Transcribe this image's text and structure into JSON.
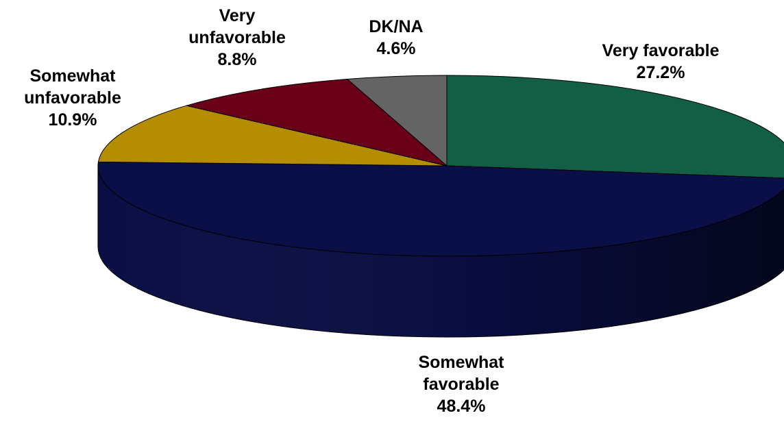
{
  "chart_data": {
    "type": "pie",
    "three_d": true,
    "title": "",
    "slices": [
      {
        "name": "Very favorable",
        "lines": [
          "Very favorable"
        ],
        "value": 27.2,
        "value_label": "27.2%",
        "color": "#135f45"
      },
      {
        "name": "Somewhat favorable",
        "lines": [
          "Somewhat",
          "favorable"
        ],
        "value": 48.4,
        "value_label": "48.4%",
        "color": "#0a0f48"
      },
      {
        "name": "Somewhat unfavorable",
        "lines": [
          "Somewhat",
          "unfavorable"
        ],
        "value": 10.9,
        "value_label": "10.9%",
        "color": "#b48e00"
      },
      {
        "name": "Very unfavorable",
        "lines": [
          "Very",
          "unfavorable"
        ],
        "value": 8.8,
        "value_label": "8.8%",
        "color": "#690018"
      },
      {
        "name": "DK/NA",
        "lines": [
          "DK/NA"
        ],
        "value": 4.6,
        "value_label": "4.6%",
        "color": "#646464"
      }
    ]
  }
}
